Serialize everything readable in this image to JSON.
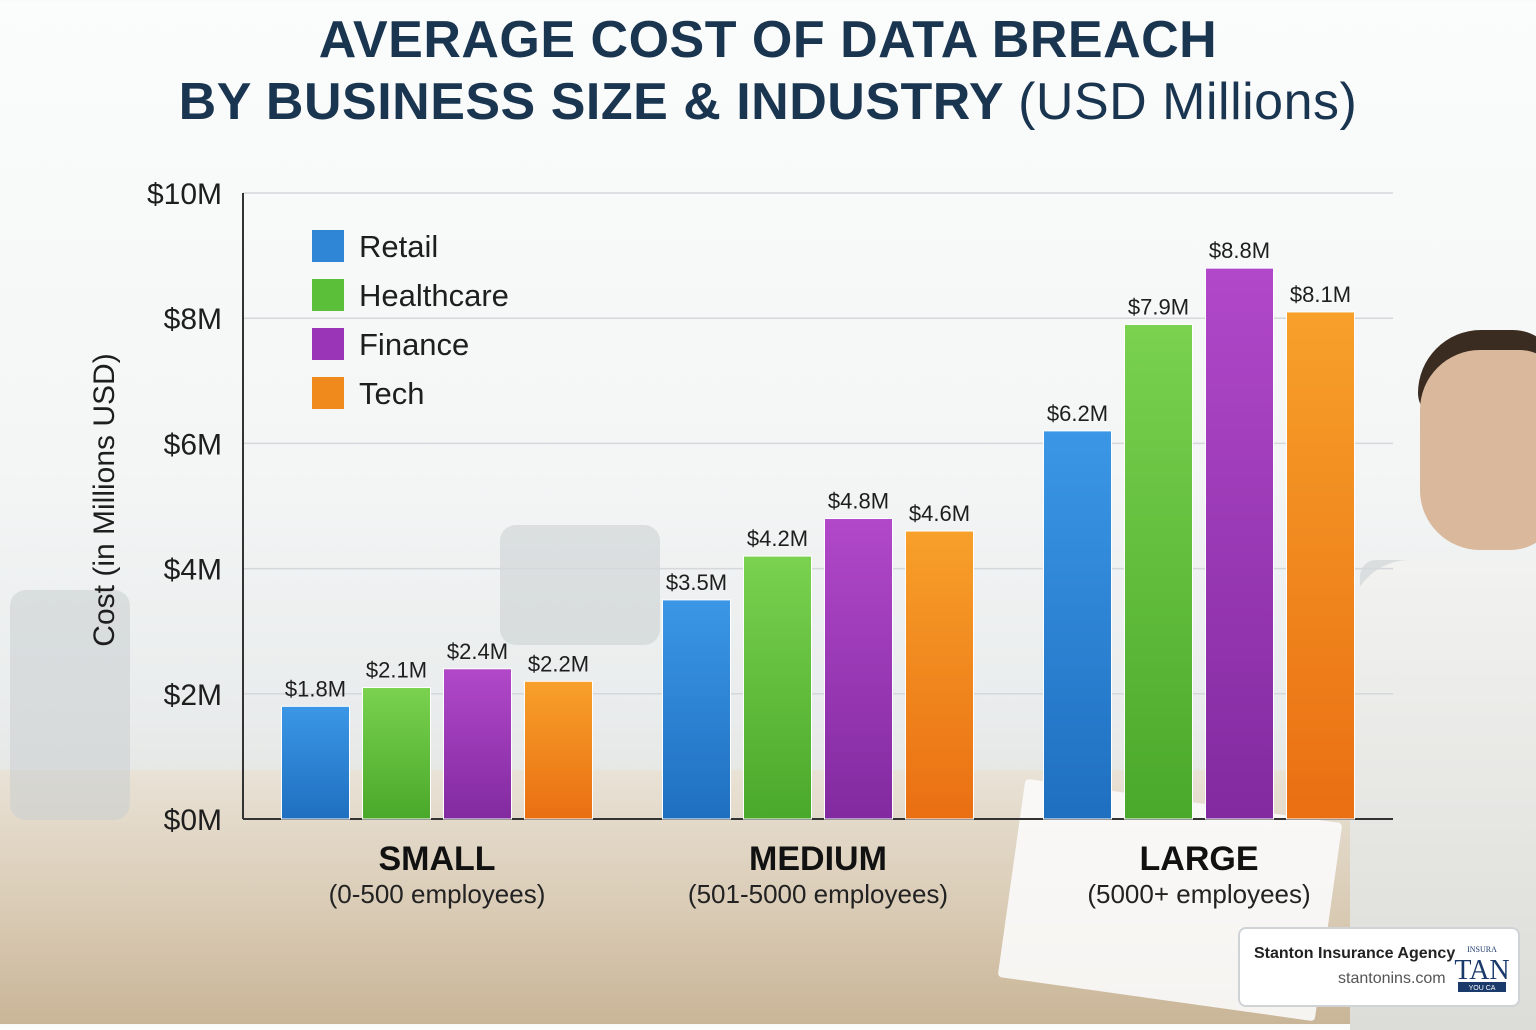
{
  "title_line1": "AVERAGE COST OF DATA BREACH",
  "title_line2_bold": "BY BUSINESS SIZE & INDUSTRY",
  "title_line2_unit": "(USD Millions)",
  "chart_data": {
    "type": "bar",
    "title": "AVERAGE COST OF DATA BREACH BY BUSINESS SIZE & INDUSTRY (USD Millions)",
    "ylabel": "Cost (in Millions USD)",
    "xlabel": "",
    "ylim": [
      0,
      10
    ],
    "yticks": [
      0,
      2,
      4,
      6,
      8,
      10
    ],
    "ytick_labels": [
      "$0M",
      "$2M",
      "$4M",
      "$6M",
      "$8M",
      "$10M"
    ],
    "grid": true,
    "legend_position": "top-left",
    "categories": [
      "SMALL",
      "MEDIUM",
      "LARGE"
    ],
    "category_subtitles": [
      "(0-500 employees)",
      "(501-5000 employees)",
      "(5000+ employees)"
    ],
    "series": [
      {
        "name": "Retail",
        "color": "#2f86d6",
        "values": [
          1.8,
          3.5,
          6.2
        ],
        "labels": [
          "$1.8M",
          "$3.5M",
          "$6.2M"
        ]
      },
      {
        "name": "Healthcare",
        "color": "#5cbf3a",
        "values": [
          2.1,
          4.2,
          7.9
        ],
        "labels": [
          "$2.1M",
          "$4.2M",
          "$7.9M"
        ]
      },
      {
        "name": "Finance",
        "color": "#9b35b8",
        "values": [
          2.4,
          4.8,
          8.8
        ],
        "labels": [
          "$2.4M",
          "$4.8M",
          "$8.8M"
        ]
      },
      {
        "name": "Tech",
        "color": "#f08a1c",
        "values": [
          2.2,
          4.6,
          8.1
        ],
        "labels": [
          "$2.2M",
          "$4.6M",
          "$8.1M"
        ]
      }
    ]
  },
  "brand": {
    "name": "Stanton Insurance Agency",
    "url": "stantonins.com",
    "logo_icon": "stanton-logo-icon",
    "logo_text_small": "INSURA",
    "logo_text_main": "TAN",
    "logo_text_bottom": "YOU CA"
  }
}
